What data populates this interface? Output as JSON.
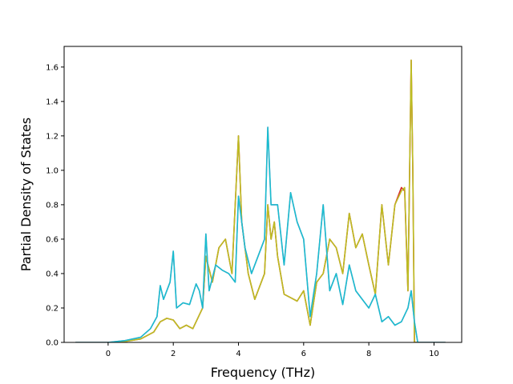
{
  "chart_data": {
    "type": "line",
    "title": "",
    "xlabel": "Frequency (THz)",
    "ylabel": "Partial Density of States",
    "xlim": [
      -1.35,
      10.85
    ],
    "ylim": [
      0.0,
      1.72
    ],
    "xticks": [
      0,
      2,
      4,
      6,
      8,
      10
    ],
    "yticks": [
      0.0,
      0.2,
      0.4,
      0.6,
      0.8,
      1.0,
      1.2,
      1.4,
      1.6
    ],
    "grid": false,
    "legend": "none",
    "series": [
      {
        "color": "#d62728",
        "x": [
          -1.0,
          0.0,
          0.5,
          1.0,
          1.4,
          1.6,
          1.8,
          2.0,
          2.2,
          2.4,
          2.6,
          2.8,
          2.9,
          3.0,
          3.2,
          3.4,
          3.6,
          3.8,
          4.0,
          4.1,
          4.3,
          4.5,
          4.7,
          4.8,
          4.9,
          5.0,
          5.1,
          5.2,
          5.4,
          5.6,
          5.8,
          6.0,
          6.2,
          6.4,
          6.6,
          6.8,
          7.0,
          7.2,
          7.4,
          7.6,
          7.8,
          8.0,
          8.2,
          8.4,
          8.6,
          8.8,
          9.0,
          9.1,
          9.2,
          9.3,
          9.35,
          9.4,
          9.5,
          10.35
        ],
        "y": [
          0.0,
          0.0,
          0.005,
          0.02,
          0.06,
          0.12,
          0.14,
          0.13,
          0.08,
          0.1,
          0.08,
          0.16,
          0.2,
          0.5,
          0.35,
          0.55,
          0.6,
          0.4,
          1.2,
          0.7,
          0.4,
          0.25,
          0.35,
          0.4,
          0.8,
          0.6,
          0.7,
          0.5,
          0.28,
          0.26,
          0.24,
          0.3,
          0.1,
          0.35,
          0.4,
          0.6,
          0.55,
          0.4,
          0.75,
          0.55,
          0.63,
          0.45,
          0.28,
          0.8,
          0.45,
          0.8,
          0.9,
          0.88,
          0.3,
          1.64,
          1.0,
          0.0,
          0.0,
          0.0
        ]
      },
      {
        "color": "#bcbd22",
        "x": [
          -1.0,
          0.0,
          0.5,
          1.0,
          1.4,
          1.6,
          1.8,
          2.0,
          2.2,
          2.4,
          2.6,
          2.8,
          2.9,
          3.0,
          3.2,
          3.4,
          3.6,
          3.8,
          4.0,
          4.1,
          4.3,
          4.5,
          4.7,
          4.8,
          4.9,
          5.0,
          5.1,
          5.2,
          5.4,
          5.6,
          5.8,
          6.0,
          6.2,
          6.4,
          6.6,
          6.8,
          7.0,
          7.2,
          7.4,
          7.6,
          7.8,
          8.0,
          8.2,
          8.4,
          8.6,
          8.8,
          9.0,
          9.1,
          9.2,
          9.3,
          9.35,
          9.4,
          9.5,
          10.35
        ],
        "y": [
          0.0,
          0.0,
          0.005,
          0.02,
          0.06,
          0.12,
          0.14,
          0.13,
          0.08,
          0.1,
          0.08,
          0.16,
          0.2,
          0.5,
          0.35,
          0.55,
          0.6,
          0.4,
          1.2,
          0.7,
          0.4,
          0.25,
          0.35,
          0.4,
          0.8,
          0.6,
          0.7,
          0.5,
          0.28,
          0.26,
          0.24,
          0.3,
          0.1,
          0.35,
          0.4,
          0.6,
          0.55,
          0.4,
          0.75,
          0.55,
          0.63,
          0.45,
          0.28,
          0.8,
          0.45,
          0.8,
          0.88,
          0.9,
          0.3,
          1.64,
          1.0,
          0.0,
          0.0,
          0.0
        ]
      },
      {
        "color": "#e377c2",
        "x": [
          -1.0,
          0.0,
          0.5,
          1.0,
          1.3,
          1.5,
          1.6,
          1.7,
          1.8,
          1.9,
          2.0,
          2.1,
          2.3,
          2.5,
          2.7,
          2.8,
          2.9,
          3.0,
          3.1,
          3.3,
          3.5,
          3.7,
          3.9,
          4.0,
          4.2,
          4.4,
          4.6,
          4.8,
          4.9,
          5.0,
          5.2,
          5.4,
          5.6,
          5.8,
          6.0,
          6.2,
          6.4,
          6.6,
          6.8,
          7.0,
          7.2,
          7.4,
          7.6,
          7.8,
          8.0,
          8.2,
          8.4,
          8.6,
          8.8,
          9.0,
          9.2,
          9.3,
          9.4,
          9.5,
          10.35
        ],
        "y": [
          0.0,
          0.0,
          0.01,
          0.03,
          0.08,
          0.15,
          0.33,
          0.25,
          0.3,
          0.35,
          0.53,
          0.2,
          0.23,
          0.22,
          0.34,
          0.3,
          0.2,
          0.63,
          0.3,
          0.45,
          0.42,
          0.4,
          0.35,
          0.85,
          0.55,
          0.4,
          0.5,
          0.6,
          1.25,
          0.8,
          0.8,
          0.45,
          0.87,
          0.7,
          0.6,
          0.15,
          0.4,
          0.8,
          0.3,
          0.4,
          0.22,
          0.45,
          0.3,
          0.25,
          0.2,
          0.28,
          0.12,
          0.15,
          0.1,
          0.12,
          0.2,
          0.3,
          0.12,
          0.0,
          0.0
        ]
      },
      {
        "color": "#17becf",
        "x": [
          -1.0,
          0.0,
          0.5,
          1.0,
          1.3,
          1.5,
          1.6,
          1.7,
          1.8,
          1.9,
          2.0,
          2.1,
          2.3,
          2.5,
          2.7,
          2.8,
          2.9,
          3.0,
          3.1,
          3.3,
          3.5,
          3.7,
          3.9,
          4.0,
          4.2,
          4.4,
          4.6,
          4.8,
          4.9,
          5.0,
          5.2,
          5.4,
          5.6,
          5.8,
          6.0,
          6.2,
          6.4,
          6.6,
          6.8,
          7.0,
          7.2,
          7.4,
          7.6,
          7.8,
          8.0,
          8.2,
          8.4,
          8.6,
          8.8,
          9.0,
          9.2,
          9.3,
          9.4,
          9.5,
          10.35
        ],
        "y": [
          0.0,
          0.0,
          0.01,
          0.03,
          0.08,
          0.15,
          0.33,
          0.25,
          0.3,
          0.35,
          0.53,
          0.2,
          0.23,
          0.22,
          0.34,
          0.3,
          0.2,
          0.63,
          0.3,
          0.45,
          0.42,
          0.4,
          0.35,
          0.85,
          0.55,
          0.4,
          0.5,
          0.6,
          1.25,
          0.8,
          0.8,
          0.45,
          0.87,
          0.7,
          0.6,
          0.15,
          0.4,
          0.8,
          0.3,
          0.4,
          0.22,
          0.45,
          0.3,
          0.25,
          0.2,
          0.28,
          0.12,
          0.15,
          0.1,
          0.12,
          0.2,
          0.3,
          0.12,
          0.0,
          0.0
        ]
      }
    ]
  }
}
